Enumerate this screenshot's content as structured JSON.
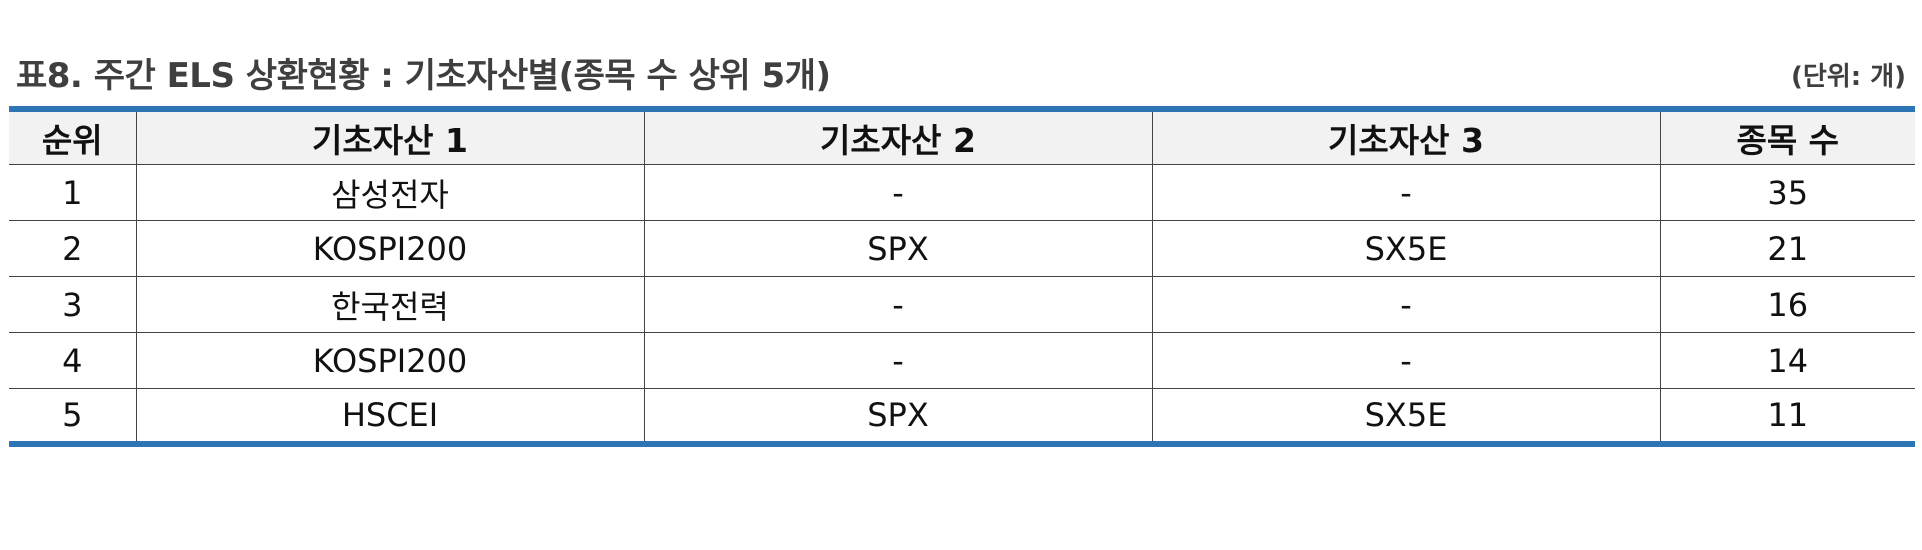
{
  "title": "표8. 주간 ELS 상환현황 : 기초자산별(종목 수 상위 5개)",
  "unit": "(단위: 개)",
  "colors": {
    "rule": "#2e75b6",
    "header_bg": "#f2f2f2",
    "title_text": "#3f3f3f"
  },
  "table": {
    "headers": [
      "순위",
      "기초자산 1",
      "기초자산 2",
      "기초자산 3",
      "종목 수"
    ],
    "rows": [
      [
        "1",
        "삼성전자",
        "-",
        "-",
        "35"
      ],
      [
        "2",
        "KOSPI200",
        "SPX",
        "SX5E",
        "21"
      ],
      [
        "3",
        "한국전력",
        "-",
        "-",
        "16"
      ],
      [
        "4",
        "KOSPI200",
        "-",
        "-",
        "14"
      ],
      [
        "5",
        "HSCEI",
        "SPX",
        "SX5E",
        "11"
      ]
    ]
  }
}
